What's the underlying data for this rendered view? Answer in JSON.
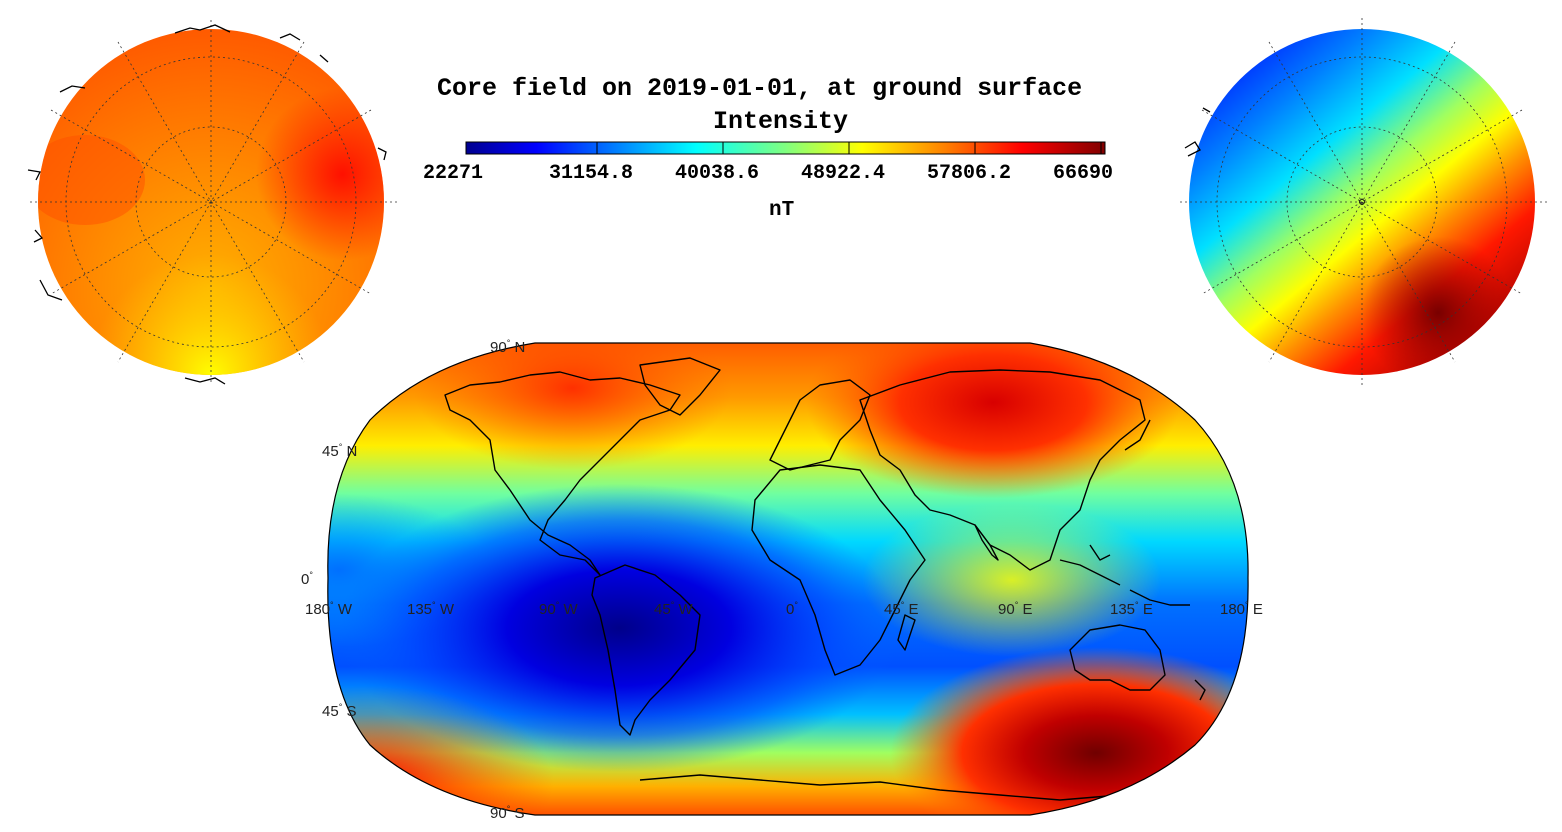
{
  "title": {
    "line1": "Core field on 2019-01-01, at ground surface",
    "line2": "Intensity"
  },
  "colorbar": {
    "ticks": [
      "22271",
      "31154.8",
      "40038.6",
      "48922.4",
      "57806.2",
      "66690"
    ],
    "unit": "nT",
    "colors": [
      "#00008f",
      "#0000ff",
      "#0080ff",
      "#00ffff",
      "#80ff80",
      "#ffff00",
      "#ff8000",
      "#ff0000",
      "#800000"
    ]
  },
  "map": {
    "projection": "Robinson",
    "lat_labels": [
      {
        "deg": "90",
        "hem": "N"
      },
      {
        "deg": "45",
        "hem": "N"
      },
      {
        "deg": "0",
        "hem": ""
      },
      {
        "deg": "45",
        "hem": "S"
      },
      {
        "deg": "90",
        "hem": "S"
      }
    ],
    "lon_labels": [
      {
        "deg": "180",
        "hem": "W"
      },
      {
        "deg": "135",
        "hem": "W"
      },
      {
        "deg": "90",
        "hem": "W"
      },
      {
        "deg": "45",
        "hem": "W"
      },
      {
        "deg": "0",
        "hem": ""
      },
      {
        "deg": "45",
        "hem": "E"
      },
      {
        "deg": "90",
        "hem": "E"
      },
      {
        "deg": "135",
        "hem": "E"
      },
      {
        "deg": "180",
        "hem": "E"
      }
    ]
  },
  "polar_views": [
    {
      "name": "north-polar-view"
    },
    {
      "name": "south-polar-view"
    }
  ]
}
